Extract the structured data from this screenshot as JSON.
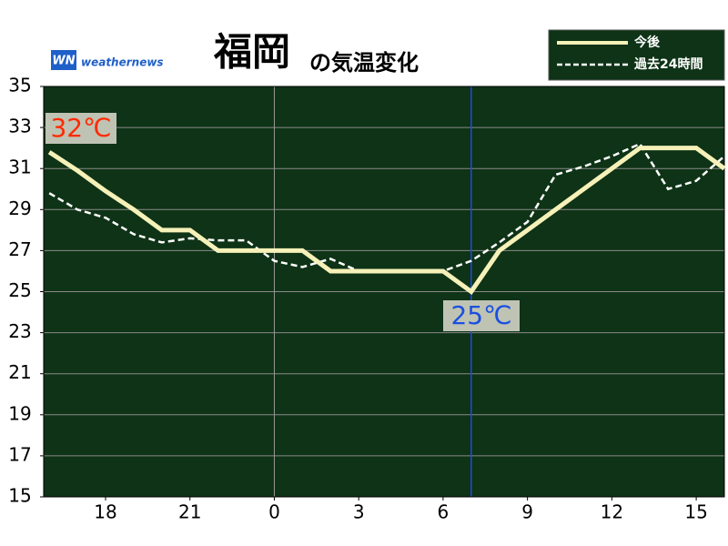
{
  "chart_data": {
    "type": "line",
    "title": "福岡",
    "subtitle": "の気温変化",
    "logo": {
      "mark": "WN",
      "text": "weathernews"
    },
    "x": [
      16,
      17,
      18,
      19,
      20,
      21,
      22,
      23,
      24,
      25,
      26,
      27,
      28,
      29,
      30,
      31,
      32,
      33,
      34,
      35,
      36,
      37,
      38,
      39,
      40
    ],
    "xlim": [
      15.8,
      40
    ],
    "xticks": [
      18,
      21,
      {
        "value": 24,
        "label": "0"
      },
      {
        "value": 27,
        "label": "3"
      },
      {
        "value": 30,
        "label": "6"
      },
      {
        "value": 33,
        "label": "9"
      },
      {
        "value": 36,
        "label": "12"
      },
      {
        "value": 39,
        "label": "15"
      }
    ],
    "ylim": [
      15,
      35
    ],
    "yticks": [
      15,
      17,
      19,
      21,
      23,
      25,
      27,
      29,
      31,
      33,
      35
    ],
    "grid": true,
    "legend": "top-right",
    "series": [
      {
        "name": "今後",
        "color": "#f6f1b8",
        "style": "solid",
        "values": [
          31.8,
          30.9,
          29.9,
          29,
          28,
          28,
          27,
          27,
          27,
          27,
          26,
          26,
          26,
          26,
          26,
          25,
          27,
          28,
          29,
          30,
          31,
          32,
          32,
          32,
          31
        ]
      },
      {
        "name": "過去24時間",
        "color": "#ffffff",
        "style": "dashed",
        "values": [
          29.8,
          29,
          28.6,
          27.8,
          27.4,
          27.6,
          27.5,
          27.5,
          26.5,
          26.2,
          26.6,
          26,
          26,
          26,
          26,
          26.5,
          27.4,
          28.4,
          30.7,
          31.1,
          31.6,
          32.2,
          30,
          30.4,
          31.6
        ]
      }
    ],
    "annotations": [
      {
        "text": "32℃",
        "color": "#ff2a00"
      },
      {
        "text": "25℃",
        "color": "#1a4fe0"
      }
    ]
  }
}
